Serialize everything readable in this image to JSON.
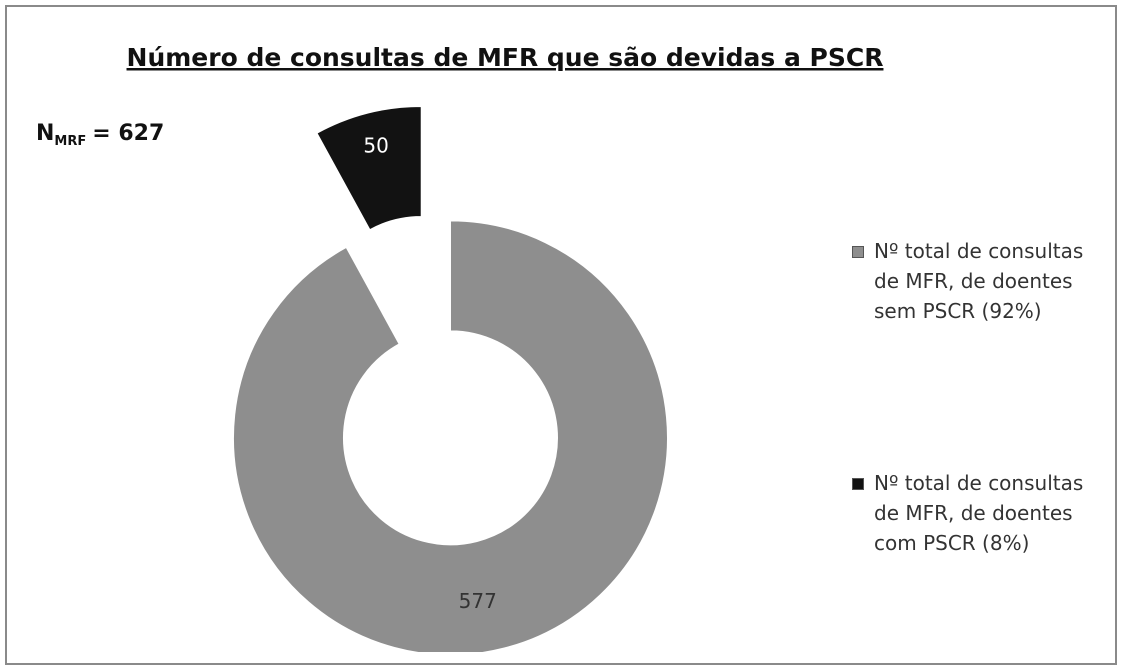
{
  "chart_data": {
    "type": "pie",
    "donut": true,
    "title": "Número de consultas de MFR que são devidas a PSCR",
    "annotation": {
      "text": "N",
      "subscript": "MRF",
      "suffix": "= 627"
    },
    "categories": [
      "Nº total de consultas de MFR, de doentes sem PSCR (92%)",
      "Nº total de consultas de MFR, de doentes com PSCR (8%)"
    ],
    "values": [
      577,
      50
    ],
    "colors": [
      "#8e8e8e",
      "#121212"
    ]
  }
}
